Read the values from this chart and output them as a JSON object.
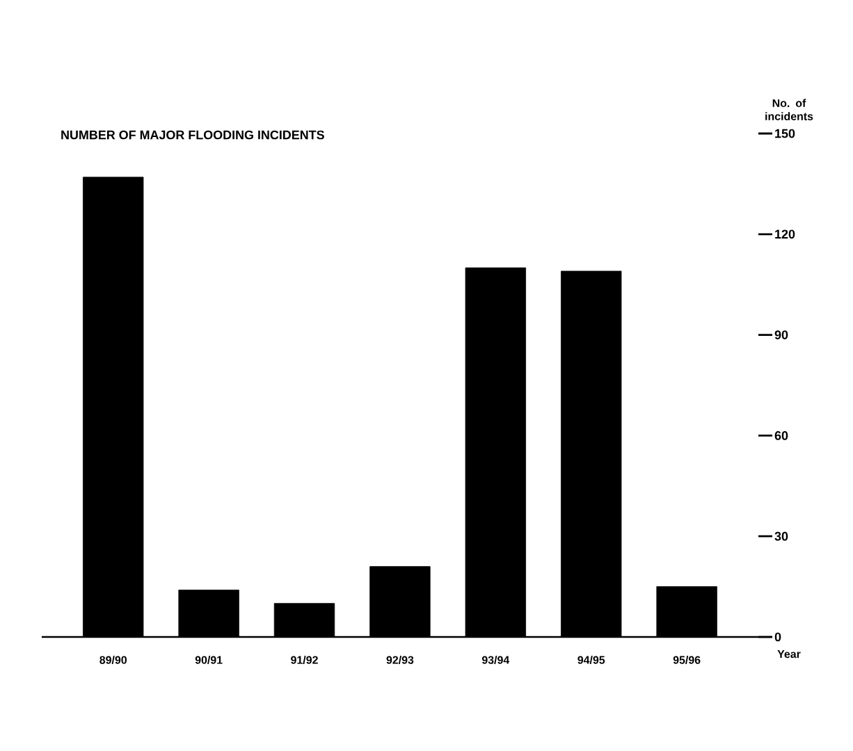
{
  "chart_data": {
    "type": "bar",
    "title": "NUMBER OF MAJOR FLOODING INCIDENTS",
    "ylabel": "No. of incidents",
    "xlabel": "Year",
    "categories": [
      "89/90",
      "90/91",
      "91/92",
      "92/93",
      "93/94",
      "94/95",
      "95/96"
    ],
    "values": [
      137,
      14,
      10,
      21,
      110,
      109,
      15
    ],
    "color": "#000000",
    "ylim": [
      0,
      150
    ],
    "yticks": [
      0,
      30,
      60,
      90,
      120,
      150
    ],
    "grid": false
  }
}
